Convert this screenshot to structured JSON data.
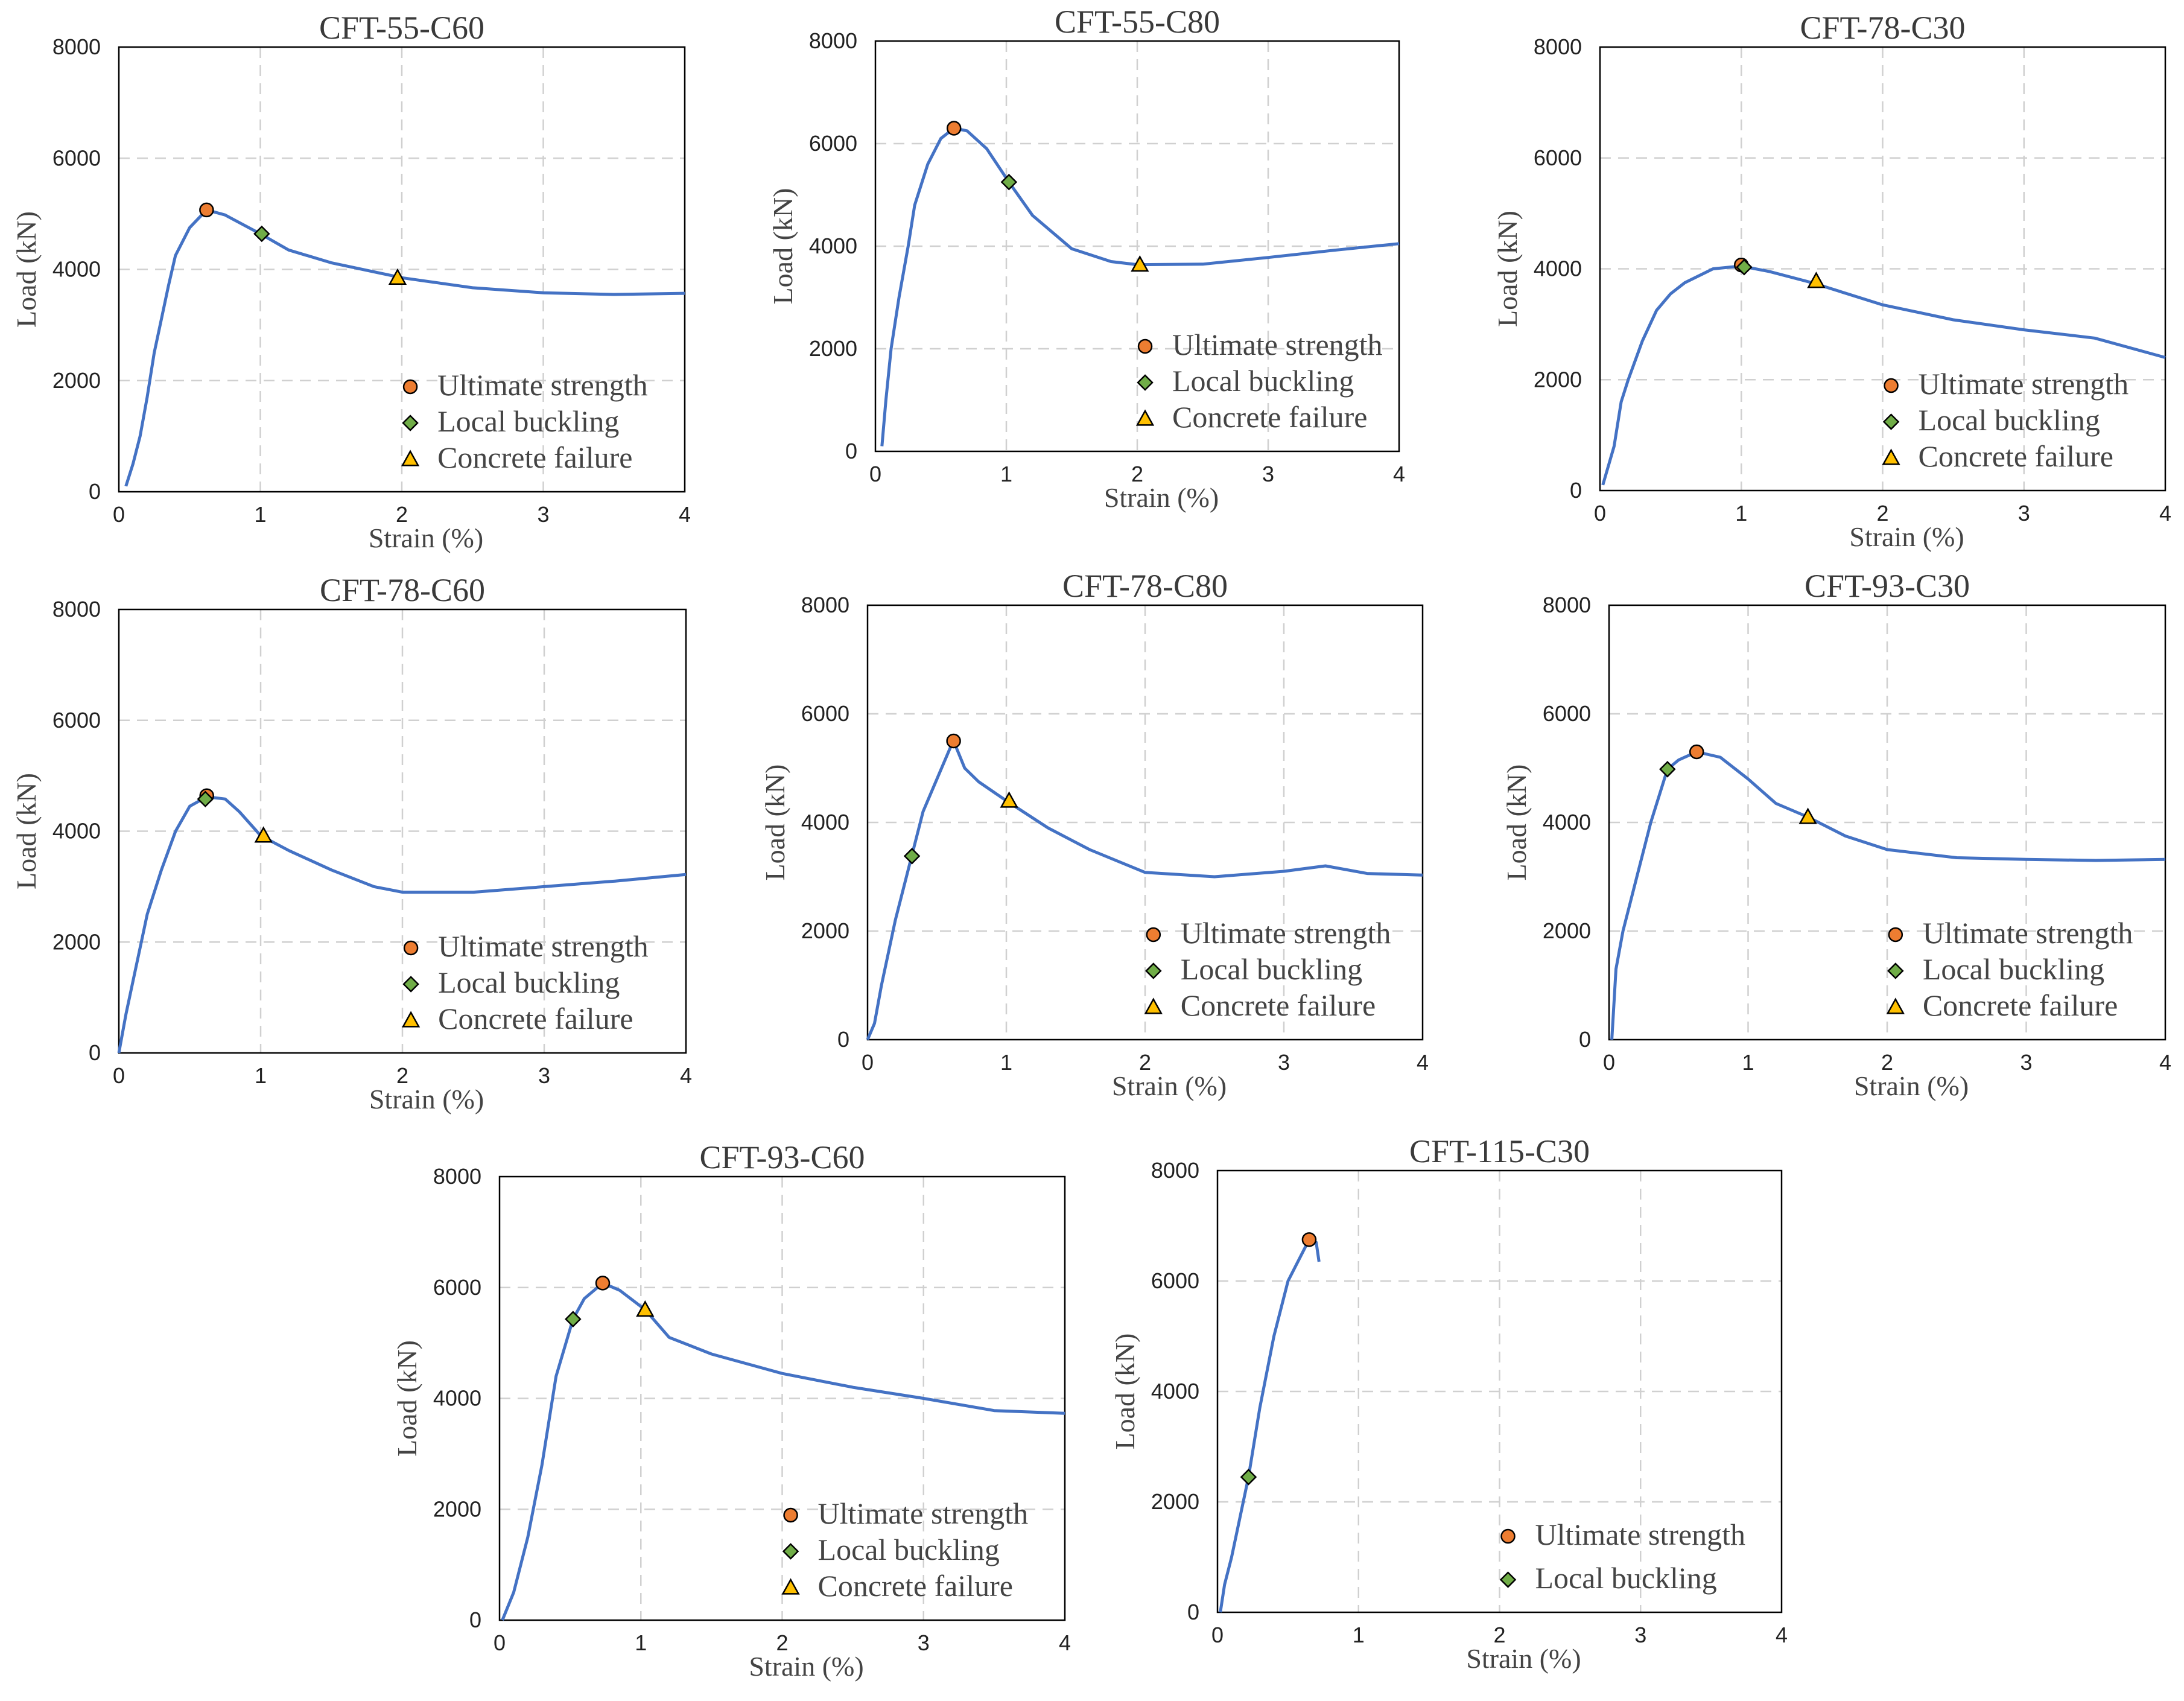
{
  "figure": {
    "colors": {
      "line": "#4472C4",
      "ultimate": "#ED7D31",
      "buckling": "#70AD47",
      "failure": "#FFC000",
      "grid": "#d0d0d0",
      "frame": "#000000"
    },
    "legend_labels": {
      "ultimate": "Ultimate strength",
      "buckling": "Local buckling",
      "failure": "Concrete failure"
    }
  },
  "chart_data": [
    {
      "type": "line",
      "title": "CFT-55-C60",
      "xlabel": "Strain (%)",
      "ylabel": "Load (kN)",
      "xlim": [
        0,
        4
      ],
      "ylim": [
        0,
        8000
      ],
      "xticks": [
        "0",
        "1",
        "2",
        "3",
        "4"
      ],
      "yticks": [
        "0",
        "2000",
        "4000",
        "6000",
        "8000"
      ],
      "grid": true,
      "legend": "bottom-right",
      "curve": [
        [
          0.05,
          100
        ],
        [
          0.1,
          500
        ],
        [
          0.15,
          1000
        ],
        [
          0.2,
          1700
        ],
        [
          0.25,
          2500
        ],
        [
          0.3,
          3100
        ],
        [
          0.35,
          3700
        ],
        [
          0.4,
          4250
        ],
        [
          0.5,
          4750
        ],
        [
          0.62,
          5070
        ],
        [
          0.75,
          4980
        ],
        [
          1.0,
          4640
        ],
        [
          1.2,
          4350
        ],
        [
          1.5,
          4120
        ],
        [
          2.0,
          3850
        ],
        [
          2.5,
          3670
        ],
        [
          3.0,
          3580
        ],
        [
          3.5,
          3550
        ],
        [
          4.0,
          3570
        ]
      ],
      "markers": {
        "ultimate": [
          0.62,
          5070
        ],
        "buckling": [
          1.01,
          4640
        ],
        "failure": [
          1.97,
          3850
        ]
      }
    },
    {
      "type": "line",
      "title": "CFT-55-C80",
      "xlabel": "Strain (%)",
      "ylabel": "Load (kN)",
      "xlim": [
        0,
        4
      ],
      "ylim": [
        0,
        8000
      ],
      "xticks": [
        "0",
        "1",
        "2",
        "3",
        "4"
      ],
      "yticks": [
        "0",
        "2000",
        "4000",
        "6000",
        "8000"
      ],
      "grid": true,
      "legend": "bottom-right",
      "curve": [
        [
          0.05,
          100
        ],
        [
          0.08,
          1000
        ],
        [
          0.12,
          2000
        ],
        [
          0.18,
          3000
        ],
        [
          0.25,
          4000
        ],
        [
          0.3,
          4800
        ],
        [
          0.4,
          5600
        ],
        [
          0.5,
          6100
        ],
        [
          0.6,
          6300
        ],
        [
          0.7,
          6250
        ],
        [
          0.85,
          5900
        ],
        [
          1.02,
          5250
        ],
        [
          1.2,
          4600
        ],
        [
          1.5,
          3950
        ],
        [
          1.8,
          3700
        ],
        [
          2.0,
          3640
        ],
        [
          2.5,
          3650
        ],
        [
          3.0,
          3780
        ],
        [
          3.5,
          3920
        ],
        [
          4.0,
          4050
        ]
      ],
      "markers": {
        "ultimate": [
          0.6,
          6300
        ],
        "buckling": [
          1.02,
          5250
        ],
        "failure": [
          2.02,
          3640
        ]
      }
    },
    {
      "type": "line",
      "title": "CFT-78-C30",
      "xlabel": "Strain (%)",
      "ylabel": "Load (kN)",
      "xlim": [
        0,
        4
      ],
      "ylim": [
        0,
        8000
      ],
      "xticks": [
        "0",
        "1",
        "2",
        "3",
        "4"
      ],
      "yticks": [
        "0",
        "2000",
        "4000",
        "6000",
        "8000"
      ],
      "grid": true,
      "legend": "bottom-right",
      "curve": [
        [
          0.02,
          100
        ],
        [
          0.1,
          800
        ],
        [
          0.15,
          1600
        ],
        [
          0.2,
          2000
        ],
        [
          0.3,
          2700
        ],
        [
          0.4,
          3250
        ],
        [
          0.5,
          3550
        ],
        [
          0.6,
          3750
        ],
        [
          0.8,
          4000
        ],
        [
          1.0,
          4050
        ],
        [
          1.2,
          3950
        ],
        [
          1.5,
          3750
        ],
        [
          2.0,
          3350
        ],
        [
          2.5,
          3080
        ],
        [
          3.0,
          2900
        ],
        [
          3.5,
          2750
        ],
        [
          4.0,
          2400
        ]
      ],
      "markers": {
        "ultimate": [
          1.0,
          4070
        ],
        "buckling": [
          1.02,
          4030
        ],
        "failure": [
          1.53,
          3780
        ]
      }
    },
    {
      "type": "line",
      "title": "CFT-78-C60",
      "xlabel": "Strain (%)",
      "ylabel": "Load (kN)",
      "xlim": [
        0,
        4
      ],
      "ylim": [
        0,
        8000
      ],
      "xticks": [
        "0",
        "1",
        "2",
        "3",
        "4"
      ],
      "yticks": [
        "0",
        "2000",
        "4000",
        "6000",
        "8000"
      ],
      "grid": true,
      "legend": "bottom-right",
      "curve": [
        [
          0.0,
          0
        ],
        [
          0.05,
          700
        ],
        [
          0.1,
          1300
        ],
        [
          0.15,
          1900
        ],
        [
          0.2,
          2500
        ],
        [
          0.3,
          3300
        ],
        [
          0.4,
          4000
        ],
        [
          0.5,
          4450
        ],
        [
          0.62,
          4620
        ],
        [
          0.75,
          4580
        ],
        [
          0.85,
          4350
        ],
        [
          1.0,
          3920
        ],
        [
          1.2,
          3650
        ],
        [
          1.5,
          3300
        ],
        [
          1.8,
          3000
        ],
        [
          2.0,
          2900
        ],
        [
          2.5,
          2900
        ],
        [
          3.0,
          3000
        ],
        [
          3.5,
          3100
        ],
        [
          4.0,
          3220
        ]
      ],
      "markers": {
        "ultimate": [
          0.62,
          4640
        ],
        "buckling": [
          0.61,
          4580
        ],
        "failure": [
          1.02,
          3920
        ]
      }
    },
    {
      "type": "line",
      "title": "CFT-78-C80",
      "xlabel": "Strain (%)",
      "ylabel": "Load (kN)",
      "xlim": [
        0,
        4
      ],
      "ylim": [
        0,
        8000
      ],
      "xticks": [
        "0",
        "1",
        "2",
        "3",
        "4"
      ],
      "yticks": [
        "0",
        "2000",
        "4000",
        "6000",
        "8000"
      ],
      "grid": true,
      "legend": "bottom-right",
      "curve": [
        [
          0.0,
          0
        ],
        [
          0.05,
          300
        ],
        [
          0.1,
          1000
        ],
        [
          0.2,
          2200
        ],
        [
          0.32,
          3400
        ],
        [
          0.4,
          4200
        ],
        [
          0.5,
          4800
        ],
        [
          0.6,
          5400
        ],
        [
          0.62,
          5500
        ],
        [
          0.7,
          5000
        ],
        [
          0.8,
          4750
        ],
        [
          1.0,
          4400
        ],
        [
          1.3,
          3900
        ],
        [
          1.6,
          3500
        ],
        [
          2.0,
          3080
        ],
        [
          2.5,
          3000
        ],
        [
          3.0,
          3100
        ],
        [
          3.3,
          3200
        ],
        [
          3.6,
          3060
        ],
        [
          4.0,
          3030
        ]
      ],
      "markers": {
        "ultimate": [
          0.62,
          5500
        ],
        "buckling": [
          0.32,
          3380
        ],
        "failure": [
          1.02,
          4400
        ]
      }
    },
    {
      "type": "line",
      "title": "CFT-93-C30",
      "xlabel": "Strain (%)",
      "ylabel": "Load (kN)",
      "xlim": [
        0,
        4
      ],
      "ylim": [
        0,
        8000
      ],
      "xticks": [
        "0",
        "1",
        "2",
        "3",
        "4"
      ],
      "yticks": [
        "0",
        "2000",
        "4000",
        "6000",
        "8000"
      ],
      "grid": true,
      "legend": "bottom-right",
      "curve": [
        [
          0.02,
          0
        ],
        [
          0.05,
          1300
        ],
        [
          0.1,
          2000
        ],
        [
          0.2,
          3000
        ],
        [
          0.3,
          4000
        ],
        [
          0.42,
          4980
        ],
        [
          0.5,
          5150
        ],
        [
          0.63,
          5300
        ],
        [
          0.8,
          5200
        ],
        [
          1.0,
          4800
        ],
        [
          1.2,
          4350
        ],
        [
          1.43,
          4100
        ],
        [
          1.7,
          3750
        ],
        [
          2.0,
          3500
        ],
        [
          2.5,
          3350
        ],
        [
          3.0,
          3320
        ],
        [
          3.5,
          3300
        ],
        [
          4.0,
          3320
        ]
      ],
      "markers": {
        "ultimate": [
          0.63,
          5300
        ],
        "buckling": [
          0.42,
          4980
        ],
        "failure": [
          1.43,
          4100
        ]
      }
    },
    {
      "type": "line",
      "title": "CFT-93-C60",
      "xlabel": "Strain (%)",
      "ylabel": "Load (kN)",
      "xlim": [
        0,
        4
      ],
      "ylim": [
        0,
        8000
      ],
      "xticks": [
        "0",
        "1",
        "2",
        "3",
        "4"
      ],
      "yticks": [
        "0",
        "2000",
        "4000",
        "6000",
        "8000"
      ],
      "grid": true,
      "legend": "bottom-right",
      "curve": [
        [
          0.02,
          0
        ],
        [
          0.1,
          500
        ],
        [
          0.2,
          1500
        ],
        [
          0.3,
          2800
        ],
        [
          0.4,
          4400
        ],
        [
          0.52,
          5430
        ],
        [
          0.6,
          5800
        ],
        [
          0.73,
          6080
        ],
        [
          0.85,
          5950
        ],
        [
          1.03,
          5600
        ],
        [
          1.2,
          5100
        ],
        [
          1.5,
          4800
        ],
        [
          2.0,
          4450
        ],
        [
          2.5,
          4200
        ],
        [
          3.0,
          4000
        ],
        [
          3.5,
          3780
        ],
        [
          4.0,
          3730
        ]
      ],
      "markers": {
        "ultimate": [
          0.73,
          6080
        ],
        "buckling": [
          0.52,
          5430
        ],
        "failure": [
          1.03,
          5600
        ]
      }
    },
    {
      "type": "line",
      "title": "CFT-115-C30",
      "xlabel": "Strain (%)",
      "ylabel": "Load (kN)",
      "xlim": [
        0,
        4
      ],
      "ylim": [
        0,
        8000
      ],
      "xticks": [
        "0",
        "1",
        "2",
        "3",
        "4"
      ],
      "yticks": [
        "0",
        "2000",
        "4000",
        "6000",
        "8000"
      ],
      "grid": true,
      "legend": "bottom-right",
      "curve": [
        [
          0.02,
          0
        ],
        [
          0.05,
          500
        ],
        [
          0.1,
          1000
        ],
        [
          0.22,
          2450
        ],
        [
          0.3,
          3700
        ],
        [
          0.4,
          5000
        ],
        [
          0.5,
          6000
        ],
        [
          0.65,
          6750
        ],
        [
          0.7,
          6700
        ],
        [
          0.72,
          6350
        ]
      ],
      "markers": {
        "ultimate": [
          0.65,
          6750
        ],
        "buckling": [
          0.22,
          2450
        ]
      }
    }
  ]
}
